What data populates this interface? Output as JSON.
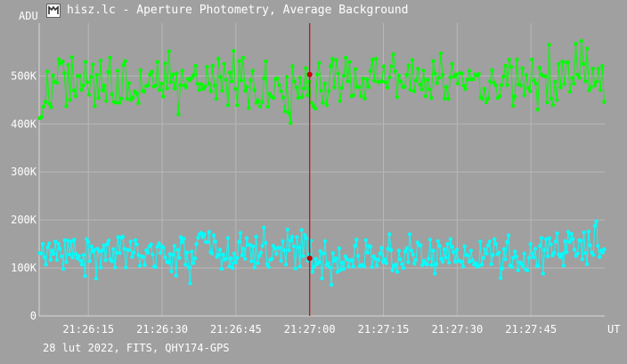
{
  "window": {
    "title": "hisz.lc - Aperture Photometry, Average Background",
    "icon": "app-icon"
  },
  "footer": {
    "info": "28 lut 2022, FITS, QHY174-GPS"
  },
  "colors": {
    "background": "#a0a0a0",
    "grid": "#b8b8b8",
    "series_green": "#00ff00",
    "series_cyan": "#00ffff",
    "cursor": "#d00000",
    "text": "#ffffff"
  },
  "chart_data": {
    "type": "line",
    "ylabel": "ADU",
    "xlabel": "UT",
    "ylim": [
      0,
      610000
    ],
    "xlim": [
      "21:26:05",
      "21:28:00"
    ],
    "y_ticks": [
      {
        "value": 0,
        "label": "0"
      },
      {
        "value": 100000,
        "label": "100K"
      },
      {
        "value": 200000,
        "label": "200K"
      },
      {
        "value": 300000,
        "label": "300K"
      },
      {
        "value": 400000,
        "label": "400K"
      },
      {
        "value": 500000,
        "label": "500K"
      }
    ],
    "x_ticks": [
      "21:26:15",
      "21:26:30",
      "21:26:45",
      "21:27:00",
      "21:27:15",
      "21:27:30",
      "21:27:45"
    ],
    "cursor": {
      "time": "21:27:00",
      "values": [
        503000,
        120000
      ]
    },
    "grid": true,
    "markers": "filled circle",
    "series": [
      {
        "color": "#00ff00",
        "values": [
          412000,
          415000,
          436000,
          446000,
          509000,
          442000,
          435000,
          501000,
          487000,
          486000,
          535000,
          527000,
          530000,
          506000,
          437000,
          523000,
          450000,
          539000,
          470000,
          458000,
          500000,
          500000,
          471000,
          480000,
          529000,
          487000,
          461000,
          498000,
          524000,
          437000,
          502000,
          454000,
          532000,
          470000,
          480000,
          448000,
          508000,
          538000,
          462000,
          446000,
          444000,
          511000,
          444000,
          453000,
          523000,
          531000,
          452000,
          485000,
          450000,
          455000,
          468000,
          463000,
          443000,
          512000,
          469000,
          467000,
          479000,
          480000,
          503000,
          509000,
          478000,
          480000,
          529000,
          471000,
          484000,
          457000,
          526000,
          474000,
          551000,
          487000,
          503000,
          474000,
          505000,
          420000,
          481000,
          511000,
          480000,
          476000,
          494000,
          491000,
          496000,
          502000,
          521000,
          484000,
          471000,
          483000,
          473000,
          478000,
          519000,
          484000,
          468000,
          521000,
          480000,
          452000,
          536000,
          498000,
          469000,
          525000,
          492000,
          439000,
          507000,
          489000,
          552000,
          473000,
          439000,
          531000,
          491000,
          538000,
          469000,
          477000,
          433000,
          491000,
          511000,
          471000,
          444000,
          449000,
          436000,
          445000,
          495000,
          530000,
          436000,
          463000,
          457000,
          454000,
          493000,
          495000,
          481000,
          468000,
          455000,
          426000,
          498000,
          423000,
          402000,
          520000,
          488000,
          476000,
          454000,
          496000,
          456000,
          474000,
          516000,
          460000,
          488000,
          444000,
          437000,
          432000,
          503000,
          527000,
          469000,
          444000,
          484000,
          439000,
          469000,
          520000,
          536000,
          476000,
          533000,
          505000,
          448000,
          475000,
          500000,
          538000,
          489000,
          529000,
          458000,
          460000,
          514000,
          477000,
          477000,
          458000,
          495000,
          453000,
          493000,
          477000,
          510000,
          534000,
          490000,
          536000,
          487000,
          488000,
          489000,
          520000,
          487000,
          476000,
          497000,
          520000,
          545000,
          510000,
          456000,
          501000,
          488000,
          477000,
          477000,
          502000,
          522000,
          471000,
          533000,
          468000,
          490000,
          515000,
          482000,
          472000,
          511000,
          458000,
          492000,
          472000,
          454000,
          531000,
          505000,
          485000,
          496000,
          547000,
          502000,
          453000,
          477000,
          452000,
          497000,
          525000,
          499000,
          503000,
          484000,
          506000,
          505000,
          480000,
          473000,
          492000,
          511000,
          493000,
          493000,
          503000,
          501000,
          504000,
          455000,
          452000,
          473000,
          445000,
          453000,
          489000,
          512000,
          486000,
          480000,
          454000,
          458000,
          481000,
          499000,
          521000,
          481000,
          534000,
          519000,
          438000,
          457000,
          534000,
          482000,
          480000,
          516000,
          460000,
          502000,
          475000,
          468000,
          534000,
          491000,
          484000,
          430000,
          517000,
          503000,
          500000,
          499000,
          445000,
          565000,
          453000,
          439000,
          488000,
          450000,
          525000,
          476000,
          530000,
          483000,
          528000,
          528000,
          467000,
          496000,
          484000,
          567000,
          503000,
          496000,
          573000,
          525000,
          489000,
          557000,
          470000,
          476000,
          515000,
          480000,
          488000,
          515000,
          471000,
          521000,
          446000
        ]
      },
      {
        "color": "#00ffff",
        "values": [
          131000,
          130000,
          150000,
          122000,
          107000,
          143000,
          151000,
          117000,
          136000,
          129000,
          155000,
          117000,
          150000,
          140000,
          124000,
          98000,
          158000,
          112000,
          157000,
          128000,
          155000,
          122000,
          159000,
          129000,
          120000,
          125000,
          115000,
          107000,
          127000,
          83000,
          160000,
          154000,
          114000,
          145000,
          134000,
          138000,
          78000,
          140000,
          134000,
          101000,
          137000,
          147000,
          116000,
          150000,
          157000,
          118000,
          114000,
          139000,
          101000,
          132000,
          164000,
          131000,
          163000,
          165000,
          140000,
          101000,
          138000,
          137000,
          155000,
          123000,
          132000,
          158000,
          149000,
          127000,
          105000,
          124000,
          123000,
          106000,
          137000,
          132000,
          145000,
          149000,
          128000,
          103000,
          102000,
          144000,
          151000,
          131000,
          145000,
          142000,
          122000,
          113000,
          111000,
          129000,
          93000,
          127000,
          146000,
          84000,
          138000,
          121000,
          164000,
          154000,
          161000,
          107000,
          132000,
          101000,
          68000,
          134000,
          110000,
          120000,
          150000,
          163000,
          170000,
          173000,
          164000,
          170000,
          154000,
          154000,
          175000,
          133000,
          130000,
          168000,
          155000,
          123000,
          127000,
          138000,
          98000,
          128000,
          117000,
          119000,
          162000,
          103000,
          120000,
          100000,
          130000,
          111000,
          121000,
          154000,
          173000,
          126000,
          140000,
          119000,
          162000,
          148000,
          148000,
          114000,
          145000,
          101000,
          165000,
          110000,
          125000,
          132000,
          146000,
          184000,
          152000,
          108000,
          102000,
          117000,
          119000,
          146000,
          140000,
          129000,
          142000,
          142000,
          115000,
          156000,
          137000,
          107000,
          180000,
          137000,
          157000,
          165000,
          145000,
          99000,
          164000,
          143000,
          103000,
          179000,
          125000,
          169000,
          162000,
          115000,
          128000,
          157000,
          92000,
          102000,
          119000,
          108000,
          112000,
          135000,
          78000,
          130000,
          156000,
          106000,
          110000,
          101000,
          65000,
          131000,
          115000,
          120000,
          92000,
          141000,
          96000,
          111000,
          98000,
          124000,
          118000,
          103000,
          115000,
          117000,
          103000,
          146000,
          159000,
          125000,
          104000,
          106000,
          106000,
          103000,
          158000,
          132000,
          146000,
          144000,
          102000,
          124000,
          119000,
          105000,
          117000,
          130000,
          142000,
          113000,
          118000,
          110000,
          140000,
          170000,
          137000,
          95000,
          104000,
          107000,
          92000,
          136000,
          118000,
          108000,
          100000,
          134000,
          141000,
          112000,
          170000,
          136000,
          128000,
          109000,
          117000,
          153000,
          147000,
          147000,
          106000,
          115000,
          110000,
          107000,
          119000,
          159000,
          106000,
          136000,
          88000,
          108000,
          156000,
          146000,
          119000,
          113000,
          139000,
          121000,
          150000,
          111000,
          160000,
          144000,
          133000,
          113000,
          138000,
          115000,
          114000,
          113000,
          103000,
          145000,
          127000,
          126000,
          113000,
          136000,
          116000,
          107000,
          110000,
          103000,
          104000,
          155000,
          107000,
          121000,
          139000,
          130000,
          147000,
          155000,
          108000,
          127000,
          160000,
          150000,
          129000,
          132000,
          79000,
          99000,
          139000,
          118000,
          154000,
          168000,
          105000,
          102000,
          121000,
          134000,
          124000,
          95000,
          112000,
          109000,
          104000,
          130000,
          97000,
          95000,
          121000,
          150000,
          130000,
          122000,
          140000,
          104000,
          105000,
          146000,
          162000,
          88000,
          137000,
          160000,
          124000,
          162000,
          149000,
          126000,
          131000,
          155000,
          172000,
          128000,
          123000,
          129000,
          105000,
          156000,
          133000,
          175000,
          154000,
          171000,
          160000,
          138000,
          125000,
          130000,
          158000,
          157000,
          118000,
          174000,
          131000,
          108000,
          176000,
          147000,
          132000,
          127000,
          188000,
          197000,
          146000,
          123000,
          136000,
          132000,
          139000
        ]
      }
    ]
  }
}
